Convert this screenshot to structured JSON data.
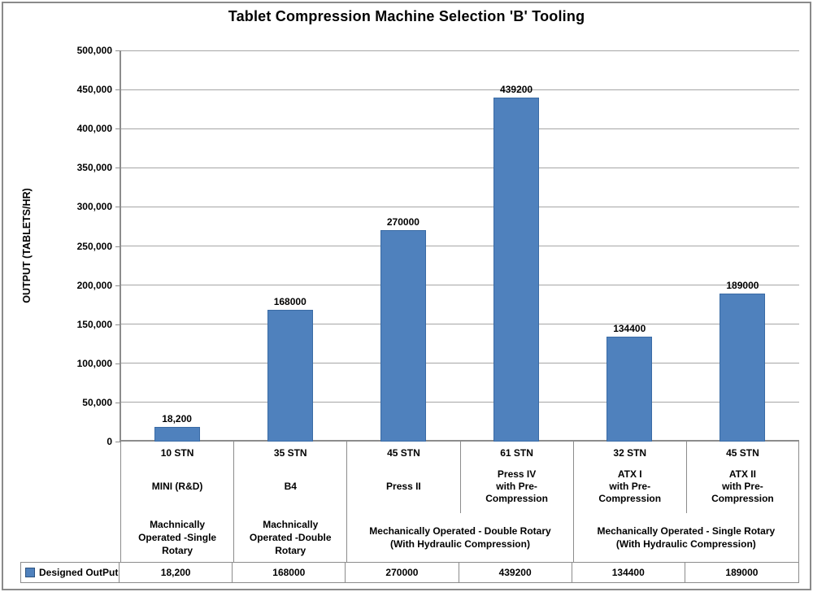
{
  "chart_data": {
    "type": "bar",
    "title": "Tablet Compression Machine Selection 'B' Tooling",
    "ylabel": "OUTPUT (TABLETS/HR)",
    "ylim": [
      0,
      500000
    ],
    "grid": true,
    "legend_position": "bottom-left",
    "yticks": [
      {
        "v": 0,
        "label": "0"
      },
      {
        "v": 50000,
        "label": "50,000"
      },
      {
        "v": 100000,
        "label": "100,000"
      },
      {
        "v": 150000,
        "label": "150,000"
      },
      {
        "v": 200000,
        "label": "200,000"
      },
      {
        "v": 250000,
        "label": "250,000"
      },
      {
        "v": 300000,
        "label": "300,000"
      },
      {
        "v": 350000,
        "label": "350,000"
      },
      {
        "v": 400000,
        "label": "400,000"
      },
      {
        "v": 450000,
        "label": "450,000"
      },
      {
        "v": 500000,
        "label": "500,000"
      }
    ],
    "series": [
      {
        "name": "Designed OutPut",
        "values": [
          18200,
          168000,
          270000,
          439200,
          134400,
          189000
        ],
        "value_labels": [
          "18,200",
          "168000",
          "270000",
          "439200",
          "134400",
          "189000"
        ]
      }
    ],
    "categories": [
      {
        "stn": "10 STN",
        "machine": "MINI (R&D)"
      },
      {
        "stn": "35 STN",
        "machine": "B4"
      },
      {
        "stn": "45 STN",
        "machine": "Press II"
      },
      {
        "stn": "61 STN",
        "machine": "Press IV\nwith Pre-\nCompression"
      },
      {
        "stn": "32 STN",
        "machine": "ATX I\nwith Pre-\nCompression"
      },
      {
        "stn": "45 STN",
        "machine": "ATX II\nwith Pre-\nCompression"
      }
    ],
    "groups": [
      {
        "label": "Machnically\nOperated -Single\nRotary",
        "span": 1
      },
      {
        "label": "Machnically\nOperated -Double\nRotary",
        "span": 1
      },
      {
        "label": "Mechanically Operated - Double Rotary\n(With Hydraulic Compression)",
        "span": 2
      },
      {
        "label": "Mechanically Operated - Single Rotary\n(With Hydraulic Compression)",
        "span": 2
      }
    ],
    "table_values": [
      "18,200",
      "168000",
      "270000",
      "439200",
      "134400",
      "189000"
    ]
  },
  "colors": {
    "bar_fill": "#4F81BD",
    "bar_border": "#3A6BA5",
    "gridline": "#A6A6A6",
    "axis_line": "#8C8C8C",
    "legend_swatch": "#4F81BD",
    "legend_swatch_border": "#2D5380",
    "text": "#000000"
  }
}
